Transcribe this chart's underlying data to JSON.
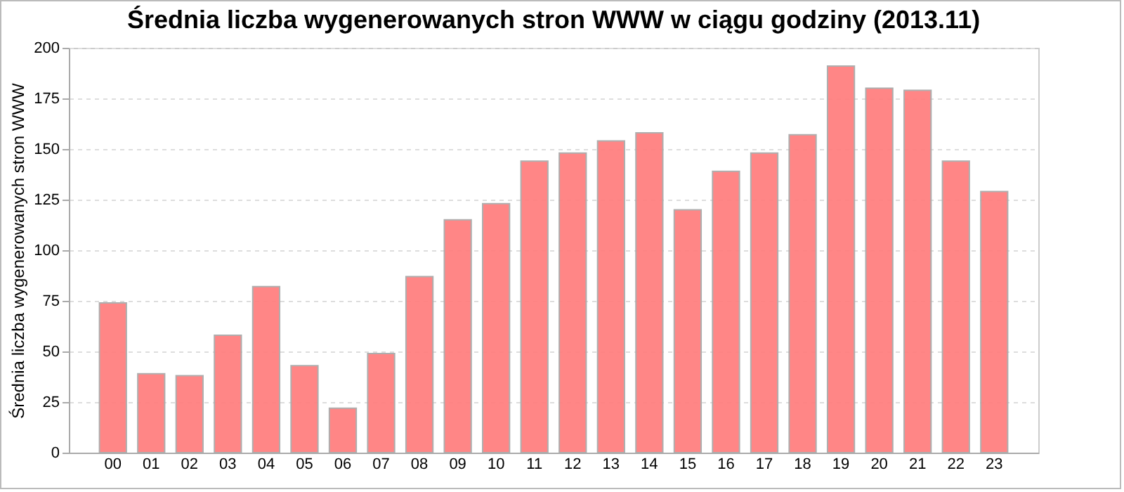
{
  "chart_data": {
    "type": "bar",
    "title": "Średnia liczba wygenerowanych stron WWW w ciągu godziny (2013.11)",
    "ylabel": "Średnia liczba wygenerowanych stron WWW",
    "categories": [
      "00",
      "01",
      "02",
      "03",
      "04",
      "05",
      "06",
      "07",
      "08",
      "09",
      "10",
      "11",
      "12",
      "13",
      "14",
      "15",
      "16",
      "17",
      "18",
      "19",
      "20",
      "21",
      "22",
      "23"
    ],
    "values": [
      74,
      39,
      38,
      58,
      82,
      43,
      22,
      49,
      87,
      115,
      123,
      144,
      148,
      154,
      158,
      120,
      139,
      148,
      157,
      191,
      180,
      179,
      144,
      129
    ],
    "color": "#ff8080",
    "ylim": [
      0,
      200
    ],
    "yticks": [
      0,
      25,
      50,
      75,
      100,
      125,
      150,
      175,
      200
    ],
    "grid": "y"
  }
}
